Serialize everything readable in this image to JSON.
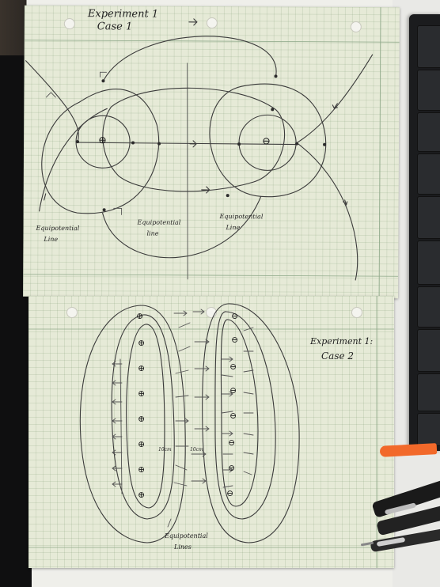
{
  "sheet1": {
    "title_line1": "Experiment 1",
    "title_line2": "Case 1",
    "label_left": "Equipotential",
    "label_left_2": "Line",
    "label_mid": "Equipotential",
    "label_mid_2": "line",
    "label_right": "Equipotential",
    "label_right_2": "Line",
    "positive_charge": "⊕",
    "negative_charge": "⊖"
  },
  "sheet2": {
    "title_line1": "Experiment 1:",
    "title_line2": "Case 2",
    "label_bottom": "Equipotential",
    "label_bottom_2": "Lines",
    "positive_symbol": "⊕",
    "negative_symbol": "⊖",
    "small_marks": [
      "10cm",
      "10cm"
    ]
  },
  "colors": {
    "paper": "#e6ead7",
    "pencil": "#3b3b3b",
    "pen_cap_orange": "#f2692a",
    "pen_black": "#1a1a1a"
  }
}
